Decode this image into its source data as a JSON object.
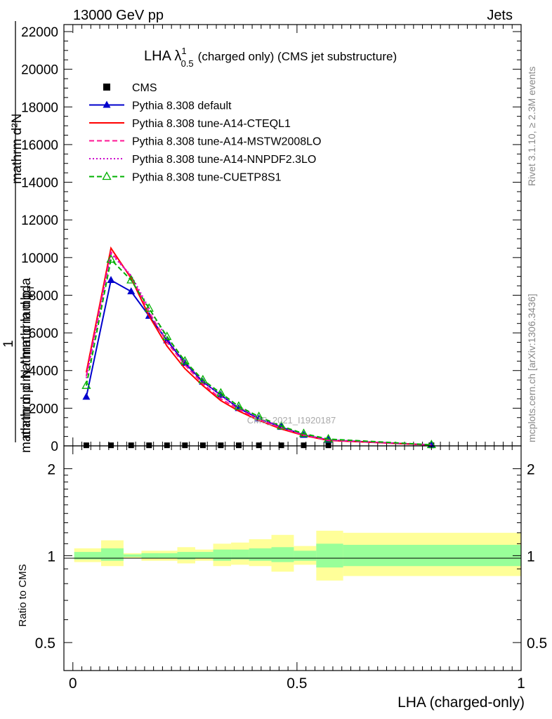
{
  "header": {
    "energy_label": "13000 GeV pp",
    "process_label": "Jets"
  },
  "side": {
    "rivet_label": "Rivet 3.1.10, ≥ 2.3M events",
    "site_label": "mcplots.cern.ch [arXiv:1306.3436]"
  },
  "watermark": "CMS_2021_I1920187",
  "chart_data": [
    {
      "type": "line",
      "title": "LHA λ¹₀.₅ (charged only) (CMS jet substructure)",
      "title_main": "LHA λ",
      "title_sup": "1",
      "title_sub": "0.5",
      "title_rest": "(charged only) (CMS jet substructure)",
      "ylabel_top": "mathrm d²N",
      "ylabel_top2": "mathrm d p mathrm d lambda",
      "ylabel_1": "1",
      "ylabel_bottom": "mathrm d N / mathrm d p",
      "ylabel_bottom_sub": "T",
      "xlim": [
        -0.02,
        1.0
      ],
      "ylim": [
        0,
        22000
      ],
      "y_ticks": [
        0,
        2000,
        4000,
        6000,
        8000,
        10000,
        12000,
        14000,
        16000,
        18000,
        20000,
        22000
      ],
      "y_tick_labels": [
        "0",
        "2000",
        "4000",
        "6000",
        "8000",
        "10000",
        "12000",
        "14000",
        "16000",
        "18000",
        "20000",
        "22000"
      ],
      "legend_position": "top-left",
      "x": [
        0.03,
        0.085,
        0.13,
        0.17,
        0.21,
        0.25,
        0.29,
        0.33,
        0.37,
        0.415,
        0.465,
        0.515,
        0.57,
        0.8
      ],
      "series": [
        {
          "name": "CMS",
          "color": "#000000",
          "style": "marker",
          "marker": "square",
          "values": [
            30,
            30,
            30,
            30,
            30,
            30,
            30,
            30,
            30,
            30,
            30,
            30,
            30,
            30
          ]
        },
        {
          "name": "Pythia 8.308 default",
          "color": "#0000cc",
          "style": "solid",
          "marker": "triangle",
          "values": [
            2600,
            8800,
            8200,
            6900,
            5600,
            4400,
            3400,
            2700,
            2000,
            1450,
            1000,
            580,
            310,
            50
          ]
        },
        {
          "name": "Pythia 8.308 tune-A14-CTEQL1",
          "color": "#ff0000",
          "style": "solid",
          "marker": "none",
          "values": [
            3900,
            10500,
            8900,
            6900,
            5300,
            4100,
            3200,
            2400,
            1850,
            1350,
            900,
            550,
            290,
            40
          ]
        },
        {
          "name": "Pythia 8.308 tune-A14-MSTW2008LO",
          "color": "#ff1493",
          "style": "dashed",
          "marker": "none",
          "values": [
            3700,
            10300,
            9000,
            7100,
            5500,
            4300,
            3300,
            2500,
            1950,
            1400,
            950,
            570,
            300,
            45
          ]
        },
        {
          "name": "Pythia 8.308 tune-A14-NNPDF2.3LO",
          "color": "#cc00cc",
          "style": "dotted",
          "marker": "none",
          "values": [
            3600,
            10200,
            9050,
            7300,
            5700,
            4450,
            3450,
            2650,
            2050,
            1500,
            1000,
            600,
            320,
            48
          ]
        },
        {
          "name": "Pythia 8.308 tune-CUETP8S1",
          "color": "#00b000",
          "style": "dashed",
          "marker": "open-triangle",
          "values": [
            3200,
            9900,
            8800,
            7300,
            5800,
            4500,
            3500,
            2800,
            2100,
            1550,
            1050,
            650,
            360,
            55
          ]
        }
      ],
      "grid": false
    },
    {
      "type": "area",
      "ylabel": "Ratio to CMS",
      "xlabel": "LHA (charged-only)",
      "log_y": true,
      "ylim": [
        0.4,
        2.4
      ],
      "y_ticks": [
        0.5,
        1,
        2
      ],
      "y_tick_labels": [
        "0.5",
        "1",
        "2"
      ],
      "x_ticks": [
        0,
        0.5,
        1
      ],
      "x_tick_labels": [
        "0",
        "0.5",
        "1"
      ],
      "bin_edges": [
        0.0,
        0.06,
        0.11,
        0.15,
        0.19,
        0.23,
        0.27,
        0.31,
        0.35,
        0.39,
        0.44,
        0.49,
        0.54,
        0.6,
        1.0
      ],
      "bands": [
        {
          "name": "total uncertainty",
          "color": "#ffff99",
          "low": [
            0.95,
            0.92,
            0.98,
            0.96,
            0.96,
            0.94,
            0.96,
            0.92,
            0.93,
            0.92,
            0.88,
            0.93,
            0.82,
            0.85
          ],
          "high": [
            1.06,
            1.13,
            1.02,
            1.04,
            1.04,
            1.07,
            1.05,
            1.1,
            1.11,
            1.14,
            1.18,
            1.08,
            1.22,
            1.2
          ]
        },
        {
          "name": "stat uncertainty",
          "color": "#99ff99",
          "low": [
            0.97,
            0.96,
            0.99,
            0.98,
            0.98,
            0.97,
            0.98,
            0.96,
            0.97,
            0.96,
            0.95,
            0.96,
            0.91,
            0.92
          ],
          "high": [
            1.03,
            1.06,
            1.01,
            1.02,
            1.02,
            1.03,
            1.03,
            1.05,
            1.05,
            1.06,
            1.07,
            1.04,
            1.1,
            1.09
          ]
        }
      ],
      "reference": 1
    }
  ]
}
